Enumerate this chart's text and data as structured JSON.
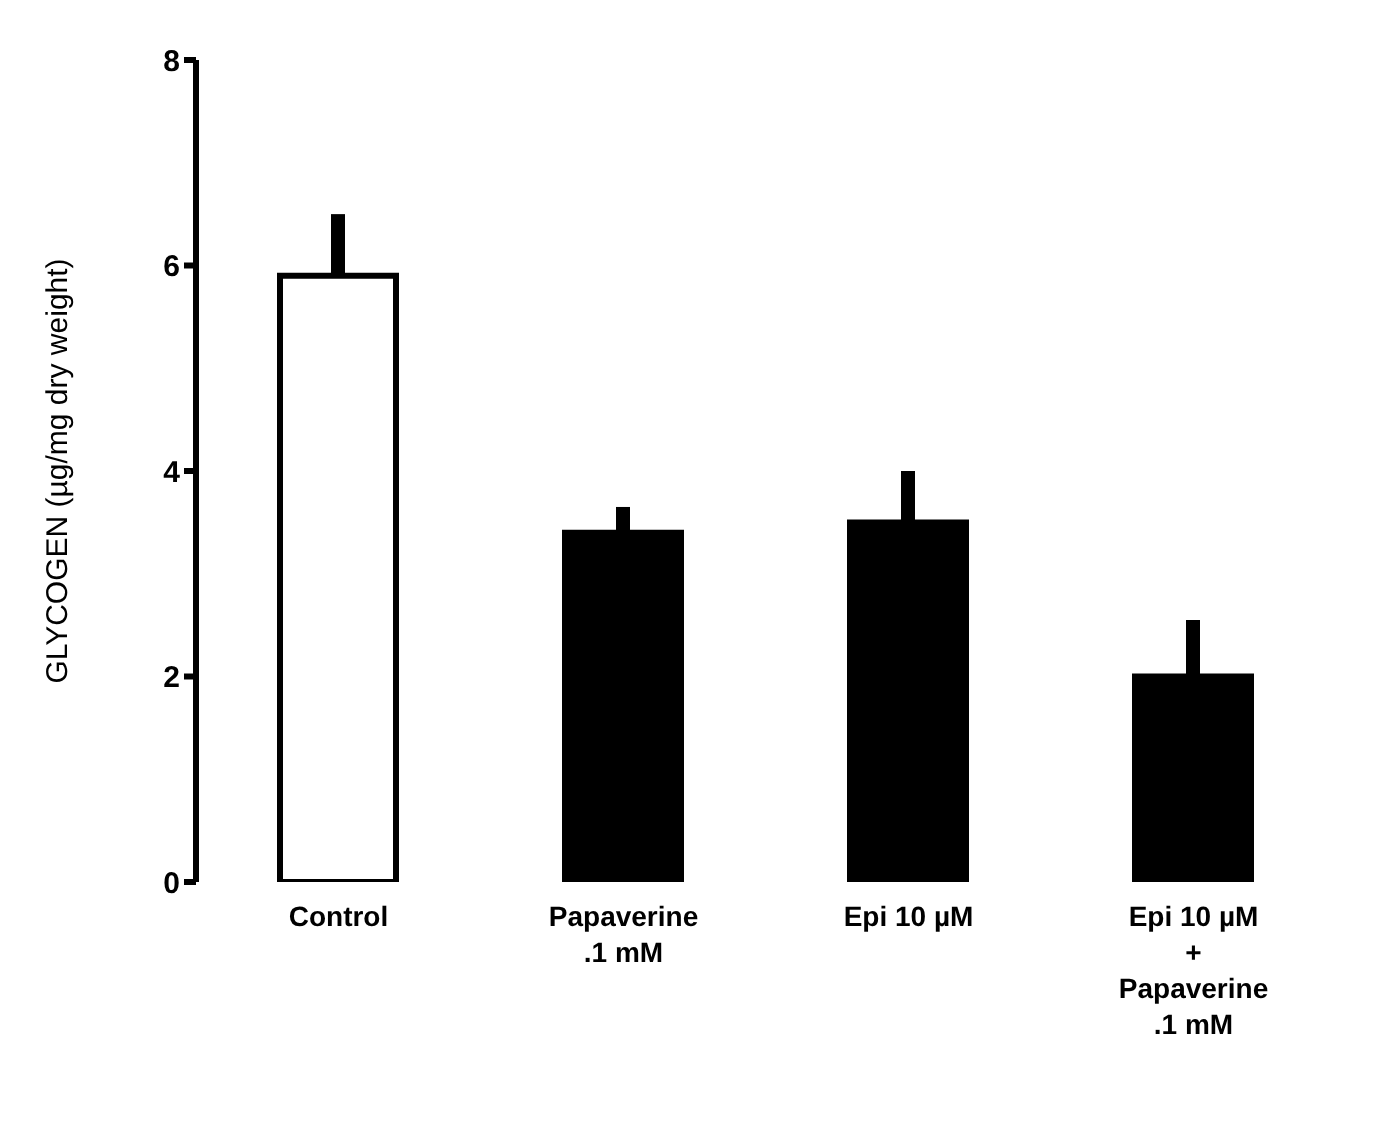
{
  "chart_data": {
    "type": "bar",
    "ylabel": "GLYCOGEN (µg/mg dry weight)",
    "categories": [
      "Control",
      "Papaverine\n.1 mM",
      "Epi 10 µM",
      "Epi 10 µM\n+\nPapaverine\n.1 mM"
    ],
    "values": [
      5.9,
      3.4,
      3.5,
      2.0
    ],
    "colors": [
      "#ffffff",
      "#000000",
      "#000000",
      "#000000"
    ],
    "errors": [
      [
        5.9,
        6.5
      ],
      [
        3.4,
        3.65
      ],
      [
        3.5,
        4.0
      ],
      [
        2.0,
        2.55
      ]
    ],
    "ylim": [
      0,
      8
    ],
    "yticks": [
      0,
      2,
      4,
      6,
      8
    ],
    "grid": false
  }
}
